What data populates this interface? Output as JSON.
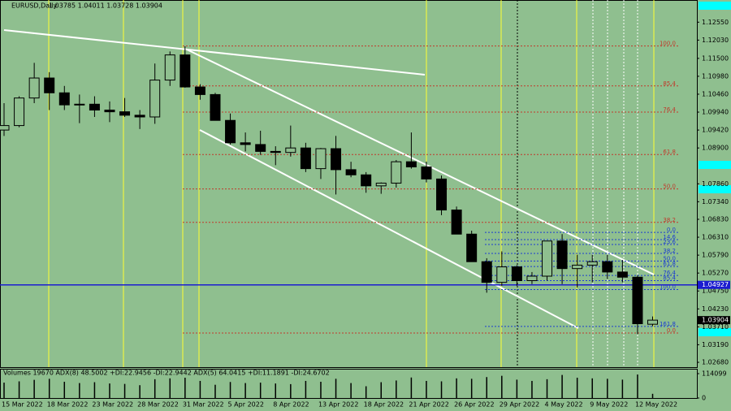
{
  "chart_data": {
    "type": "candlestick",
    "title": "EURUSD,Daily",
    "quote": "1.03785 1.04011 1.03728 1.03904",
    "categories": [
      "15 Mar 2022",
      null,
      null,
      "18 Mar 2022",
      null,
      null,
      "23 Mar 2022",
      null,
      null,
      "28 Mar 2022",
      null,
      null,
      "31 Mar 2022",
      null,
      null,
      "5 Apr 2022",
      null,
      null,
      "8 Apr 2022",
      null,
      null,
      "13 Apr 2022",
      null,
      null,
      "18 Apr 2022",
      null,
      null,
      "21 Apr 2022",
      null,
      null,
      "26 Apr 2022",
      null,
      null,
      "29 Apr 2022",
      null,
      null,
      "4 May 2022",
      null,
      null,
      "9 May 2022",
      null,
      null,
      "12 May 2022",
      null
    ],
    "open": [
      1.0942,
      1.0955,
      1.1035,
      1.1093,
      1.105,
      1.1015,
      1.1017,
      1.1,
      1.0995,
      1.0985,
      1.098,
      1.1087,
      1.116,
      1.1067,
      1.1045,
      1.097,
      1.0905,
      1.09,
      1.088,
      1.0877,
      1.089,
      1.083,
      1.0888,
      1.0827,
      1.0812,
      1.078,
      1.0788,
      1.085,
      1.0835,
      1.08,
      1.071,
      1.064,
      1.056,
      1.05,
      1.0545,
      1.0505,
      1.0518,
      1.062,
      1.054,
      1.055,
      1.056,
      1.053,
      1.0515,
      1.03785
    ],
    "high": [
      1.102,
      1.104,
      1.1137,
      1.111,
      1.107,
      1.1045,
      1.104,
      1.1025,
      1.1035,
      1.1,
      1.1135,
      1.117,
      1.1185,
      1.1075,
      1.105,
      1.099,
      1.0935,
      1.094,
      1.0895,
      1.0955,
      1.0905,
      1.089,
      1.0925,
      1.085,
      1.082,
      1.079,
      1.0855,
      1.0935,
      1.085,
      1.081,
      1.072,
      1.065,
      1.057,
      1.059,
      1.055,
      1.053,
      1.062,
      1.064,
      1.058,
      1.058,
      1.058,
      1.0565,
      1.052,
      1.04011
    ],
    "low": [
      1.0925,
      1.095,
      1.102,
      1.1,
      1.1,
      1.0962,
      1.098,
      1.0965,
      1.098,
      1.0945,
      1.096,
      1.107,
      1.1065,
      1.103,
      1.097,
      1.09,
      1.088,
      1.087,
      1.084,
      1.0865,
      1.082,
      1.08,
      1.0755,
      1.0805,
      1.076,
      1.0757,
      1.0775,
      1.083,
      1.079,
      1.0695,
      1.064,
      1.056,
      1.047,
      1.049,
      1.049,
      1.0495,
      1.0505,
      1.0495,
      1.0485,
      1.05,
      1.051,
      1.05,
      1.035,
      1.03728
    ],
    "close": [
      1.0955,
      1.1035,
      1.1093,
      1.105,
      1.1015,
      1.1017,
      1.1,
      1.0995,
      1.0985,
      1.098,
      1.1087,
      1.116,
      1.1067,
      1.1045,
      1.097,
      1.0905,
      1.09,
      1.088,
      1.0877,
      1.089,
      1.083,
      1.0888,
      1.0827,
      1.0812,
      1.078,
      1.0788,
      1.085,
      1.0835,
      1.08,
      1.071,
      1.064,
      1.056,
      1.05,
      1.0545,
      1.0505,
      1.0518,
      1.062,
      1.054,
      1.055,
      1.056,
      1.053,
      1.0515,
      1.038,
      1.03904
    ],
    "ylim": [
      1.0254,
      1.1317
    ],
    "yticks": [
      {
        "value": 1.1255,
        "label": "1.12550"
      },
      {
        "value": 1.1203,
        "label": "1.12030"
      },
      {
        "value": 1.115,
        "label": "1.11500"
      },
      {
        "value": 1.1098,
        "label": "1.10980"
      },
      {
        "value": 1.1046,
        "label": "1.10460"
      },
      {
        "value": 1.0994,
        "label": "1.09940"
      },
      {
        "value": 1.0942,
        "label": "1.09420"
      },
      {
        "value": 1.089,
        "label": "1.08900"
      },
      {
        "value": 1.0786,
        "label": "1.07860"
      },
      {
        "value": 1.0734,
        "label": "1.07340"
      },
      {
        "value": 1.0683,
        "label": "1.06830"
      },
      {
        "value": 1.0631,
        "label": "1.06310"
      },
      {
        "value": 1.0579,
        "label": "1.05790"
      },
      {
        "value": 1.0527,
        "label": "1.05270"
      },
      {
        "value": 1.0475,
        "label": "1.04750"
      },
      {
        "value": 1.0423,
        "label": "1.04230"
      },
      {
        "value": 1.0371,
        "label": "1.03710"
      },
      {
        "value": 1.0319,
        "label": "1.03190"
      },
      {
        "value": 1.0268,
        "label": "1.02680"
      }
    ],
    "price_markers": [
      {
        "value": 1.04927,
        "label": "1.04927",
        "color": "#1c1cd0"
      },
      {
        "value": 1.03904,
        "label": "1.03904",
        "color": "#000000"
      }
    ],
    "fib_sets": [
      {
        "color": "#c0392b",
        "levels": [
          {
            "label": "100.0",
            "price": 1.1186
          },
          {
            "label": "85.4",
            "price": 1.107
          },
          {
            "label": "76.4",
            "price": 1.0994
          },
          {
            "label": "61.8",
            "price": 1.0871
          },
          {
            "label": "50.0",
            "price": 1.0771
          },
          {
            "label": "38.2",
            "price": 1.0674
          },
          {
            "label": "0.0",
            "price": 1.0353
          }
        ]
      },
      {
        "color": "#1c3cd0",
        "levels": [
          {
            "label": "0.0",
            "price": 1.0645
          },
          {
            "label": "14.6",
            "price": 1.0624
          },
          {
            "label": "23.6",
            "price": 1.061
          },
          {
            "label": "38.2",
            "price": 1.0584
          },
          {
            "label": "50.0",
            "price": 1.0562
          },
          {
            "label": "61.8",
            "price": 1.0546
          },
          {
            "label": "76.4",
            "price": 1.052
          },
          {
            "label": "85.4",
            "price": 1.0505
          },
          {
            "label": "100.0",
            "price": 1.0479
          },
          {
            "label": "161.8",
            "price": 1.0372
          }
        ]
      }
    ],
    "indicator_label": "Volumes 19670  ADX(8) 48.5002 +DI:22.9456 -DI:22.9442  ADX(5) 64.0415 +DI:11.1891 -DI:24.6702",
    "volumes": [
      72000,
      78000,
      85000,
      90000,
      76000,
      70000,
      74000,
      68000,
      66000,
      60000,
      88000,
      92000,
      95000,
      80000,
      62000,
      75000,
      70000,
      72000,
      68000,
      65000,
      80000,
      76000,
      90000,
      70000,
      55000,
      74000,
      82000,
      96000,
      80000,
      78000,
      92000,
      90000,
      98000,
      104000,
      86000,
      80000,
      88000,
      108000,
      95000,
      92000,
      90000,
      86000,
      110000,
      19670
    ],
    "vlim": [
      0,
      114099
    ],
    "vticks": [
      0,
      114099
    ]
  }
}
